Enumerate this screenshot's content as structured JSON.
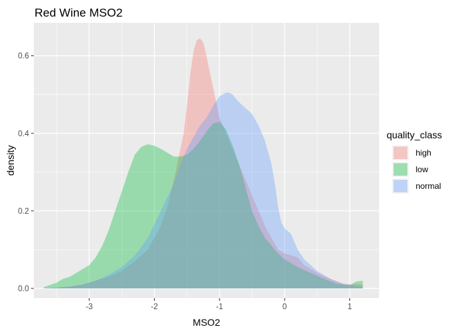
{
  "chart_data": {
    "type": "area",
    "title": "Red Wine MSO2",
    "xlabel": "MSO2",
    "ylabel": "density",
    "xlim": [
      -3.85,
      1.45
    ],
    "ylim": [
      -0.025,
      0.685
    ],
    "x_ticks": [
      -3,
      -2,
      -1,
      0,
      1
    ],
    "y_ticks": [
      0.0,
      0.2,
      0.4,
      0.6
    ],
    "y_tick_labels": [
      "0.0",
      "0.2",
      "0.4",
      "0.6"
    ],
    "grid": true,
    "background": "#ebebeb",
    "legend": {
      "title": "quality_class",
      "position": "right"
    },
    "series": [
      {
        "name": "high",
        "color": "#F8766D",
        "x": [
          -3.7,
          -3.5,
          -3.3,
          -3.1,
          -2.9,
          -2.7,
          -2.5,
          -2.3,
          -2.1,
          -1.9,
          -1.8,
          -1.7,
          -1.6,
          -1.55,
          -1.5,
          -1.45,
          -1.4,
          -1.35,
          -1.3,
          -1.25,
          -1.2,
          -1.15,
          -1.1,
          -1.05,
          -1.0,
          -0.9,
          -0.8,
          -0.7,
          -0.6,
          -0.5,
          -0.4,
          -0.3,
          -0.2,
          -0.1,
          0.0,
          0.1,
          0.2,
          0.3,
          0.5,
          0.7,
          0.9,
          1.2
        ],
        "y": [
          0.0,
          0.002,
          0.005,
          0.01,
          0.02,
          0.03,
          0.045,
          0.07,
          0.1,
          0.16,
          0.21,
          0.28,
          0.36,
          0.4,
          0.47,
          0.55,
          0.61,
          0.64,
          0.645,
          0.635,
          0.6,
          0.56,
          0.52,
          0.48,
          0.44,
          0.4,
          0.36,
          0.32,
          0.28,
          0.24,
          0.2,
          0.16,
          0.13,
          0.1,
          0.09,
          0.085,
          0.08,
          0.06,
          0.04,
          0.025,
          0.012,
          0.01
        ]
      },
      {
        "name": "low",
        "color": "#00BA38",
        "x": [
          -3.7,
          -3.5,
          -3.4,
          -3.3,
          -3.2,
          -3.0,
          -2.9,
          -2.8,
          -2.7,
          -2.6,
          -2.5,
          -2.4,
          -2.3,
          -2.2,
          -2.1,
          -2.0,
          -1.9,
          -1.8,
          -1.7,
          -1.6,
          -1.5,
          -1.4,
          -1.3,
          -1.2,
          -1.1,
          -1.0,
          -0.9,
          -0.8,
          -0.7,
          -0.6,
          -0.5,
          -0.4,
          -0.3,
          -0.2,
          -0.1,
          0.0,
          0.2,
          0.4,
          0.6,
          0.8,
          1.0,
          1.1,
          1.2
        ],
        "y": [
          0.003,
          0.015,
          0.025,
          0.03,
          0.04,
          0.06,
          0.08,
          0.11,
          0.15,
          0.2,
          0.25,
          0.3,
          0.345,
          0.365,
          0.372,
          0.368,
          0.36,
          0.35,
          0.34,
          0.34,
          0.345,
          0.36,
          0.38,
          0.405,
          0.425,
          0.43,
          0.41,
          0.37,
          0.32,
          0.26,
          0.2,
          0.16,
          0.13,
          0.11,
          0.09,
          0.075,
          0.055,
          0.04,
          0.025,
          0.012,
          0.008,
          0.018,
          0.02
        ]
      },
      {
        "name": "normal",
        "color": "#619CFF",
        "x": [
          -3.7,
          -3.5,
          -3.3,
          -3.1,
          -2.9,
          -2.7,
          -2.5,
          -2.3,
          -2.1,
          -1.9,
          -1.7,
          -1.6,
          -1.5,
          -1.4,
          -1.3,
          -1.2,
          -1.1,
          -1.0,
          -0.9,
          -0.85,
          -0.8,
          -0.7,
          -0.6,
          -0.5,
          -0.4,
          -0.3,
          -0.2,
          -0.15,
          -0.1,
          -0.05,
          0.0,
          0.1,
          0.2,
          0.3,
          0.5,
          0.7,
          0.9,
          1.2
        ],
        "y": [
          0.0,
          0.002,
          0.005,
          0.01,
          0.02,
          0.035,
          0.055,
          0.085,
          0.13,
          0.2,
          0.27,
          0.32,
          0.36,
          0.39,
          0.42,
          0.44,
          0.47,
          0.495,
          0.505,
          0.505,
          0.5,
          0.48,
          0.465,
          0.45,
          0.42,
          0.38,
          0.32,
          0.27,
          0.21,
          0.17,
          0.155,
          0.14,
          0.1,
          0.075,
          0.045,
          0.025,
          0.012,
          0.003
        ]
      }
    ]
  }
}
